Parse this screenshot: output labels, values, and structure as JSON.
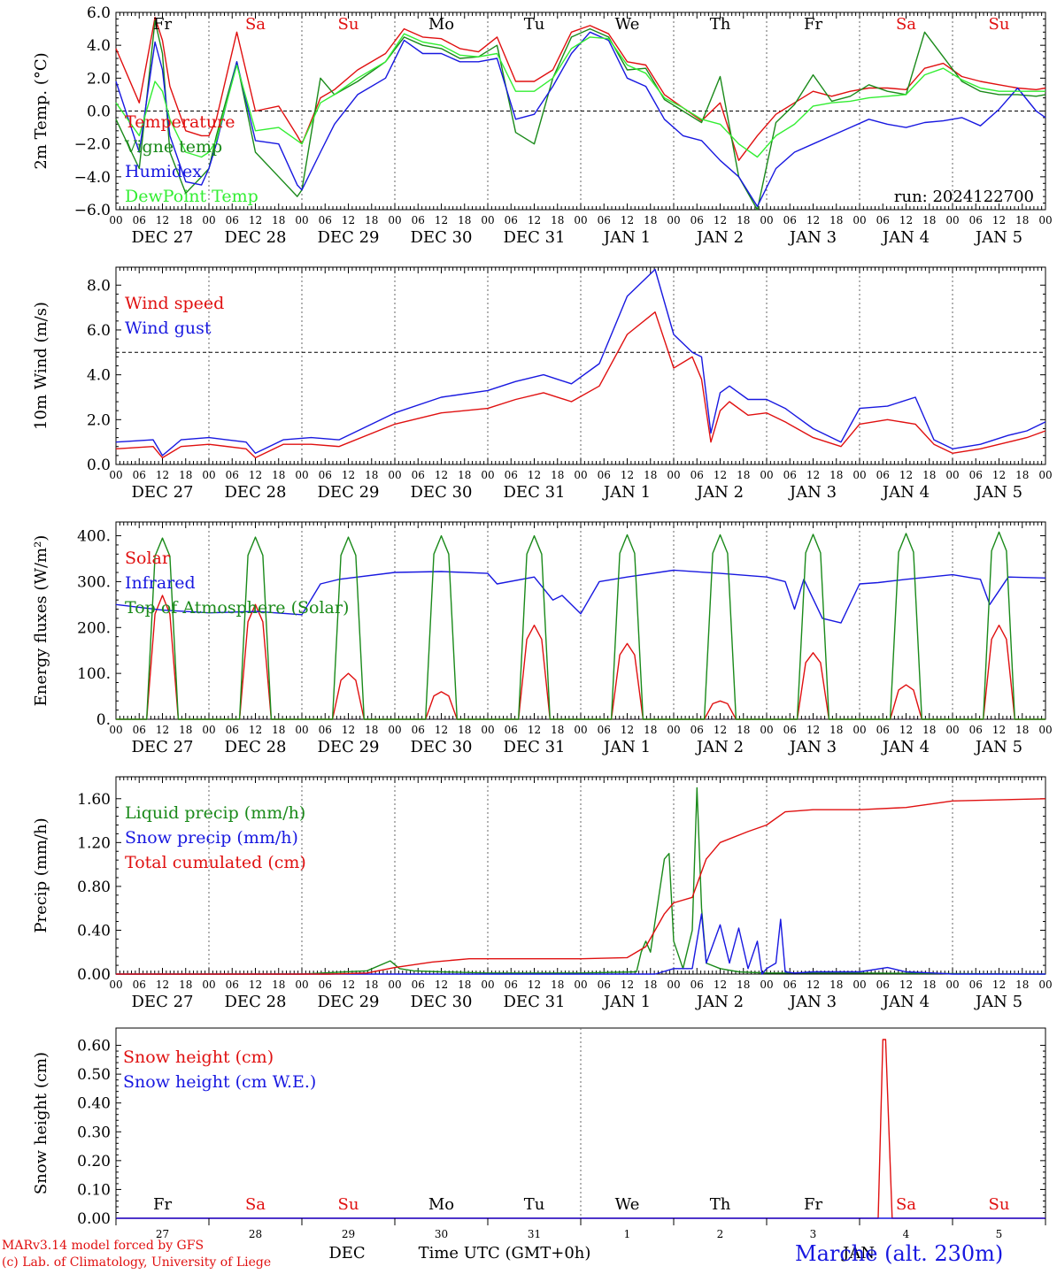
{
  "colors": {
    "red": "#e01010",
    "green": "#1a8a1a",
    "blue": "#1818e0",
    "lightgreen": "#33ee33",
    "axis": "#000000",
    "grid": "#666666"
  },
  "x_axis": {
    "hour_ticks": [
      "00",
      "06",
      "12",
      "18"
    ],
    "dates": [
      "DEC 27",
      "DEC 28",
      "DEC 29",
      "DEC 30",
      "DEC 31",
      "JAN  1",
      "JAN  2",
      "JAN  3",
      "JAN  4",
      "JAN  5"
    ],
    "weekdays": [
      "Fr",
      "Sa",
      "Su",
      "Mo",
      "Tu",
      "We",
      "Th",
      "Fr",
      "Sa",
      "Su"
    ],
    "weekday_colors": [
      "black",
      "red",
      "red",
      "black",
      "black",
      "black",
      "black",
      "black",
      "red",
      "red"
    ],
    "day_numbers": [
      "27",
      "28",
      "29",
      "30",
      "31",
      "1",
      "2",
      "3",
      "4",
      "5"
    ],
    "month_label": "DEC",
    "month_label_2": "JAN",
    "axis_title": "Time UTC (GMT+0h)"
  },
  "footer": {
    "line1": "MARv3.14 model forced by GFS",
    "line2": "(c) Lab. of Climatology, University of Liege",
    "station": "Marche (alt. 230m)"
  },
  "chart_data": [
    {
      "type": "line",
      "ylabel": "2m Temp. (°C)",
      "ylim": [
        -6,
        6
      ],
      "yticks": [
        "6.0",
        "4.0",
        "2.0",
        "0.0",
        "−2.0",
        "−4.0",
        "−6.0"
      ],
      "ytick_values": [
        6,
        4,
        2,
        0,
        -2,
        -4,
        -6
      ],
      "reference_line": 0,
      "annotation": "run: 2024122700",
      "series": [
        {
          "name": "Temperature",
          "color": "red",
          "x_days": [
            0,
            0.25,
            0.42,
            0.5,
            0.58,
            0.75,
            0.92,
            1.0,
            1.08,
            1.3,
            1.5,
            1.75,
            1.95,
            2.0,
            2.2,
            2.35,
            2.6,
            2.9,
            3.1,
            3.3,
            3.5,
            3.7,
            3.9,
            4.1,
            4.3,
            4.5,
            4.7,
            4.9,
            5.1,
            5.3,
            5.5,
            5.7,
            5.9,
            6.1,
            6.3,
            6.5,
            6.7,
            6.9,
            7.1,
            7.3,
            7.5,
            7.7,
            7.9,
            8.1,
            8.3,
            8.5,
            8.7,
            8.9,
            9.1,
            9.3,
            9.5,
            9.7,
            9.9,
            10.0
          ],
          "values": [
            3.8,
            0.5,
            5.7,
            4.3,
            1.5,
            -1.2,
            -1.5,
            -1.5,
            -0.5,
            4.8,
            0.0,
            0.3,
            -1.5,
            -2.0,
            0.8,
            1.3,
            2.5,
            3.5,
            5.0,
            4.5,
            4.4,
            3.8,
            3.6,
            4.5,
            1.8,
            1.8,
            2.5,
            4.8,
            5.2,
            4.7,
            3.0,
            2.8,
            1.0,
            0.2,
            -0.6,
            0.5,
            -3.0,
            -1.5,
            -0.2,
            0.5,
            1.2,
            0.9,
            1.2,
            1.4,
            1.4,
            1.3,
            2.6,
            2.9,
            2.1,
            1.8,
            1.6,
            1.4,
            1.3,
            1.4
          ]
        },
        {
          "name": "Vigne temp",
          "color": "green",
          "x_days": [
            0,
            0.25,
            0.42,
            0.5,
            0.58,
            0.75,
            0.92,
            1.0,
            1.08,
            1.3,
            1.5,
            1.75,
            1.95,
            2.0,
            2.2,
            2.35,
            2.6,
            2.9,
            3.1,
            3.3,
            3.5,
            3.7,
            3.9,
            4.1,
            4.3,
            4.5,
            4.7,
            4.9,
            5.1,
            5.3,
            5.5,
            5.7,
            5.9,
            6.1,
            6.3,
            6.5,
            6.7,
            6.9,
            7.1,
            7.3,
            7.5,
            7.7,
            7.9,
            8.1,
            8.3,
            8.5,
            8.7,
            8.9,
            9.1,
            9.3,
            9.5,
            9.7,
            9.9,
            10.0
          ],
          "values": [
            -0.5,
            -3.5,
            5.5,
            3.5,
            -2.5,
            -5.0,
            -4.0,
            -3.5,
            -1.5,
            3.0,
            -2.5,
            -4.0,
            -5.2,
            -4.8,
            2.0,
            1.0,
            1.8,
            3.0,
            4.5,
            4.0,
            3.8,
            3.2,
            3.3,
            4.0,
            -1.3,
            -2.0,
            2.0,
            4.5,
            5.0,
            4.5,
            2.5,
            2.6,
            0.7,
            0.0,
            -0.7,
            2.1,
            -4.0,
            -6.0,
            -0.7,
            0.4,
            2.2,
            0.6,
            0.9,
            1.6,
            1.2,
            1.0,
            4.8,
            3.3,
            1.8,
            1.2,
            1.0,
            1.0,
            0.9,
            1.0
          ]
        },
        {
          "name": "Humidex",
          "color": "blue",
          "x_days": [
            0,
            0.25,
            0.42,
            0.5,
            0.58,
            0.75,
            0.92,
            1.0,
            1.08,
            1.3,
            1.5,
            1.75,
            1.95,
            2.0,
            2.2,
            2.35,
            2.6,
            2.9,
            3.1,
            3.3,
            3.5,
            3.7,
            3.9,
            4.1,
            4.3,
            4.5,
            4.7,
            4.9,
            5.1,
            5.3,
            5.5,
            5.7,
            5.9,
            6.1,
            6.3,
            6.5,
            6.7,
            6.9,
            7.1,
            7.3,
            7.5,
            7.7,
            7.9,
            8.1,
            8.3,
            8.5,
            8.7,
            8.9,
            9.1,
            9.3,
            9.5,
            9.7,
            9.9,
            10.0
          ],
          "values": [
            1.8,
            -2.5,
            4.2,
            2.5,
            -1.5,
            -4.3,
            -4.5,
            -3.5,
            -2.0,
            3.0,
            -1.8,
            -2.0,
            -4.5,
            -4.8,
            -2.5,
            -0.8,
            1.0,
            2.0,
            4.3,
            3.5,
            3.5,
            3.0,
            3.0,
            3.2,
            -0.5,
            -0.2,
            1.5,
            3.5,
            4.8,
            4.3,
            2.0,
            1.5,
            -0.5,
            -1.5,
            -1.8,
            -3.0,
            -4.0,
            -5.8,
            -3.5,
            -2.5,
            -2.0,
            -1.5,
            -1.0,
            -0.5,
            -0.8,
            -1.0,
            -0.7,
            -0.6,
            -0.4,
            -0.9,
            0.1,
            1.4,
            0.0,
            -0.4
          ]
        },
        {
          "name": "DewPoint Temp",
          "color": "lightgreen",
          "x_days": [
            0,
            0.25,
            0.42,
            0.5,
            0.58,
            0.75,
            0.92,
            1.0,
            1.08,
            1.3,
            1.5,
            1.75,
            1.95,
            2.0,
            2.2,
            2.35,
            2.6,
            2.9,
            3.1,
            3.3,
            3.5,
            3.7,
            3.9,
            4.1,
            4.3,
            4.5,
            4.7,
            4.9,
            5.1,
            5.3,
            5.5,
            5.7,
            5.9,
            6.1,
            6.3,
            6.5,
            6.7,
            6.9,
            7.1,
            7.3,
            7.5,
            7.7,
            7.9,
            8.1,
            8.3,
            8.5,
            8.7,
            8.9,
            9.1,
            9.3,
            9.5,
            9.7,
            9.9,
            10.0
          ],
          "values": [
            0.5,
            -1.5,
            1.8,
            1.2,
            -0.5,
            -2.5,
            -2.8,
            -2.5,
            -1.8,
            2.8,
            -1.2,
            -1.0,
            -1.8,
            -2.0,
            0.5,
            1.0,
            2.0,
            3.0,
            4.7,
            4.2,
            4.0,
            3.4,
            3.3,
            3.5,
            1.2,
            1.2,
            2.0,
            3.8,
            4.5,
            4.4,
            2.8,
            2.3,
            0.8,
            0.2,
            -0.5,
            -0.8,
            -2.0,
            -2.8,
            -1.5,
            -0.8,
            0.3,
            0.5,
            0.6,
            0.8,
            0.9,
            1.0,
            2.2,
            2.6,
            1.9,
            1.4,
            1.2,
            1.2,
            1.2,
            1.2
          ]
        }
      ]
    },
    {
      "type": "line",
      "ylabel": "10m Wind (m/s)",
      "ylim": [
        0,
        8.8
      ],
      "yticks": [
        "8.0",
        "6.0",
        "4.0",
        "2.0",
        "0.0"
      ],
      "ytick_values": [
        8,
        6,
        4,
        2,
        0
      ],
      "reference_line": 5,
      "series": [
        {
          "name": "Wind speed",
          "color": "red",
          "x_days": [
            0,
            0.4,
            0.5,
            0.7,
            1.0,
            1.4,
            1.5,
            1.8,
            2.1,
            2.4,
            3.0,
            3.5,
            4.0,
            4.3,
            4.6,
            4.9,
            5.2,
            5.5,
            5.8,
            6.0,
            6.2,
            6.3,
            6.4,
            6.5,
            6.6,
            6.8,
            7.0,
            7.2,
            7.5,
            7.8,
            8.0,
            8.3,
            8.6,
            8.8,
            9.0,
            9.3,
            9.6,
            9.8,
            10.0
          ],
          "values": [
            0.7,
            0.8,
            0.3,
            0.8,
            0.9,
            0.7,
            0.3,
            0.9,
            0.9,
            0.8,
            1.8,
            2.3,
            2.5,
            2.9,
            3.2,
            2.8,
            3.5,
            5.8,
            6.8,
            4.3,
            4.8,
            3.8,
            1.0,
            2.4,
            2.8,
            2.2,
            2.3,
            1.9,
            1.2,
            0.8,
            1.8,
            2.0,
            1.8,
            0.9,
            0.5,
            0.7,
            1.0,
            1.2,
            1.5
          ]
        },
        {
          "name": "Wind gust",
          "color": "blue",
          "x_days": [
            0,
            0.4,
            0.5,
            0.7,
            1.0,
            1.4,
            1.5,
            1.8,
            2.1,
            2.4,
            3.0,
            3.5,
            4.0,
            4.3,
            4.6,
            4.9,
            5.2,
            5.5,
            5.8,
            6.0,
            6.2,
            6.3,
            6.4,
            6.5,
            6.6,
            6.8,
            7.0,
            7.2,
            7.5,
            7.8,
            8.0,
            8.3,
            8.6,
            8.8,
            9.0,
            9.3,
            9.6,
            9.8,
            10.0
          ],
          "values": [
            1.0,
            1.1,
            0.4,
            1.1,
            1.2,
            1.0,
            0.5,
            1.1,
            1.2,
            1.1,
            2.3,
            3.0,
            3.3,
            3.7,
            4.0,
            3.6,
            4.5,
            7.5,
            8.7,
            5.8,
            5.0,
            4.8,
            1.4,
            3.2,
            3.5,
            2.9,
            2.9,
            2.5,
            1.6,
            1.0,
            2.5,
            2.6,
            3.0,
            1.1,
            0.7,
            0.9,
            1.3,
            1.5,
            1.9
          ]
        }
      ]
    },
    {
      "type": "line",
      "ylabel": "Energy fluxes (W/m²)",
      "ylim": [
        0,
        430
      ],
      "yticks": [
        "400.",
        "300.",
        "200.",
        "100.",
        "0."
      ],
      "ytick_values": [
        400,
        300,
        200,
        100,
        0
      ],
      "solar_peaks": [
        270,
        250,
        100,
        60,
        205,
        165,
        40,
        145,
        75,
        205
      ],
      "toa_peaks": [
        395,
        397,
        397,
        400,
        400,
        402,
        402,
        403,
        405,
        408
      ],
      "series": [
        {
          "name": "Solar",
          "color": "red"
        },
        {
          "name": "Infrared",
          "color": "blue",
          "x_days": [
            0,
            0.5,
            1.0,
            1.5,
            2.0,
            2.2,
            2.4,
            3.0,
            3.5,
            4.0,
            4.1,
            4.5,
            4.7,
            4.8,
            5.0,
            5.2,
            5.5,
            6.0,
            6.5,
            7.0,
            7.2,
            7.3,
            7.4,
            7.6,
            7.8,
            8.0,
            8.2,
            8.5,
            9.0,
            9.3,
            9.4,
            9.6,
            10.0
          ],
          "values": [
            250,
            238,
            232,
            235,
            228,
            295,
            305,
            320,
            322,
            318,
            295,
            310,
            260,
            270,
            230,
            300,
            310,
            325,
            318,
            310,
            300,
            240,
            305,
            220,
            210,
            295,
            298,
            305,
            315,
            305,
            250,
            310,
            308
          ]
        },
        {
          "name": "Top of Atmosphere (Solar)",
          "color": "green"
        }
      ]
    },
    {
      "type": "line",
      "ylabel": "Precip (mm/h)",
      "ylim": [
        0,
        1.8
      ],
      "yticks": [
        "1.60",
        "1.20",
        "0.80",
        "0.40",
        "0.00"
      ],
      "ytick_values": [
        1.6,
        1.2,
        0.8,
        0.4,
        0
      ],
      "series": [
        {
          "name": "Liquid precip (mm/h)",
          "color": "green",
          "x_days": [
            0,
            2.0,
            2.7,
            2.95,
            3.05,
            3.2,
            3.5,
            4.0,
            5.0,
            5.6,
            5.65,
            5.7,
            5.75,
            5.9,
            5.95,
            6.0,
            6.1,
            6.2,
            6.25,
            6.3,
            6.35,
            6.5,
            6.7,
            7.0,
            8.0,
            10.0
          ],
          "values": [
            0,
            0,
            0.03,
            0.12,
            0.05,
            0.03,
            0.02,
            0.01,
            0.01,
            0.02,
            0.2,
            0.3,
            0.2,
            1.05,
            1.1,
            0.3,
            0.05,
            0.4,
            1.7,
            0.6,
            0.1,
            0.05,
            0.02,
            0.01,
            0.01,
            0.0
          ]
        },
        {
          "name": "Snow precip (mm/h)",
          "color": "blue",
          "x_days": [
            0,
            5.8,
            6.0,
            6.2,
            6.3,
            6.35,
            6.5,
            6.6,
            6.7,
            6.8,
            6.9,
            6.95,
            7.0,
            7.1,
            7.15,
            7.2,
            7.3,
            7.5,
            8.0,
            8.3,
            8.5,
            8.8,
            9.0,
            10.0
          ],
          "values": [
            0,
            0,
            0.05,
            0.05,
            0.55,
            0.1,
            0.45,
            0.1,
            0.42,
            0.05,
            0.3,
            0.0,
            0.05,
            0.1,
            0.5,
            0.02,
            0.01,
            0.02,
            0.02,
            0.06,
            0.02,
            0.01,
            0.0,
            0.0
          ]
        },
        {
          "name": "Total cumulated (cm)",
          "color": "red",
          "x_days": [
            0,
            2.3,
            2.7,
            3.0,
            3.4,
            3.8,
            4.5,
            5.0,
            5.5,
            5.7,
            5.9,
            6.0,
            6.2,
            6.35,
            6.5,
            6.8,
            7.0,
            7.2,
            7.5,
            8.0,
            8.5,
            9.0,
            10.0
          ],
          "values": [
            0,
            0,
            0.01,
            0.06,
            0.11,
            0.14,
            0.14,
            0.14,
            0.15,
            0.25,
            0.55,
            0.65,
            0.7,
            1.05,
            1.2,
            1.3,
            1.36,
            1.48,
            1.5,
            1.5,
            1.52,
            1.58,
            1.6
          ]
        }
      ]
    },
    {
      "type": "line",
      "ylabel": "Snow height (cm)",
      "ylim": [
        0,
        0.66
      ],
      "yticks": [
        "0.60",
        "0.50",
        "0.40",
        "0.30",
        "0.20",
        "0.10",
        "0.00"
      ],
      "ytick_values": [
        0.6,
        0.5,
        0.4,
        0.3,
        0.2,
        0.1,
        0
      ],
      "series": [
        {
          "name": "Snow height (cm)",
          "color": "red",
          "x_days": [
            0,
            8.2,
            8.25,
            8.28,
            8.35,
            10.0
          ],
          "values": [
            0,
            0,
            0.62,
            0.62,
            0,
            0
          ]
        },
        {
          "name": "Snow height (cm W.E.)",
          "color": "blue",
          "x_days": [
            0,
            10.0
          ],
          "values": [
            0,
            0
          ]
        }
      ]
    }
  ]
}
